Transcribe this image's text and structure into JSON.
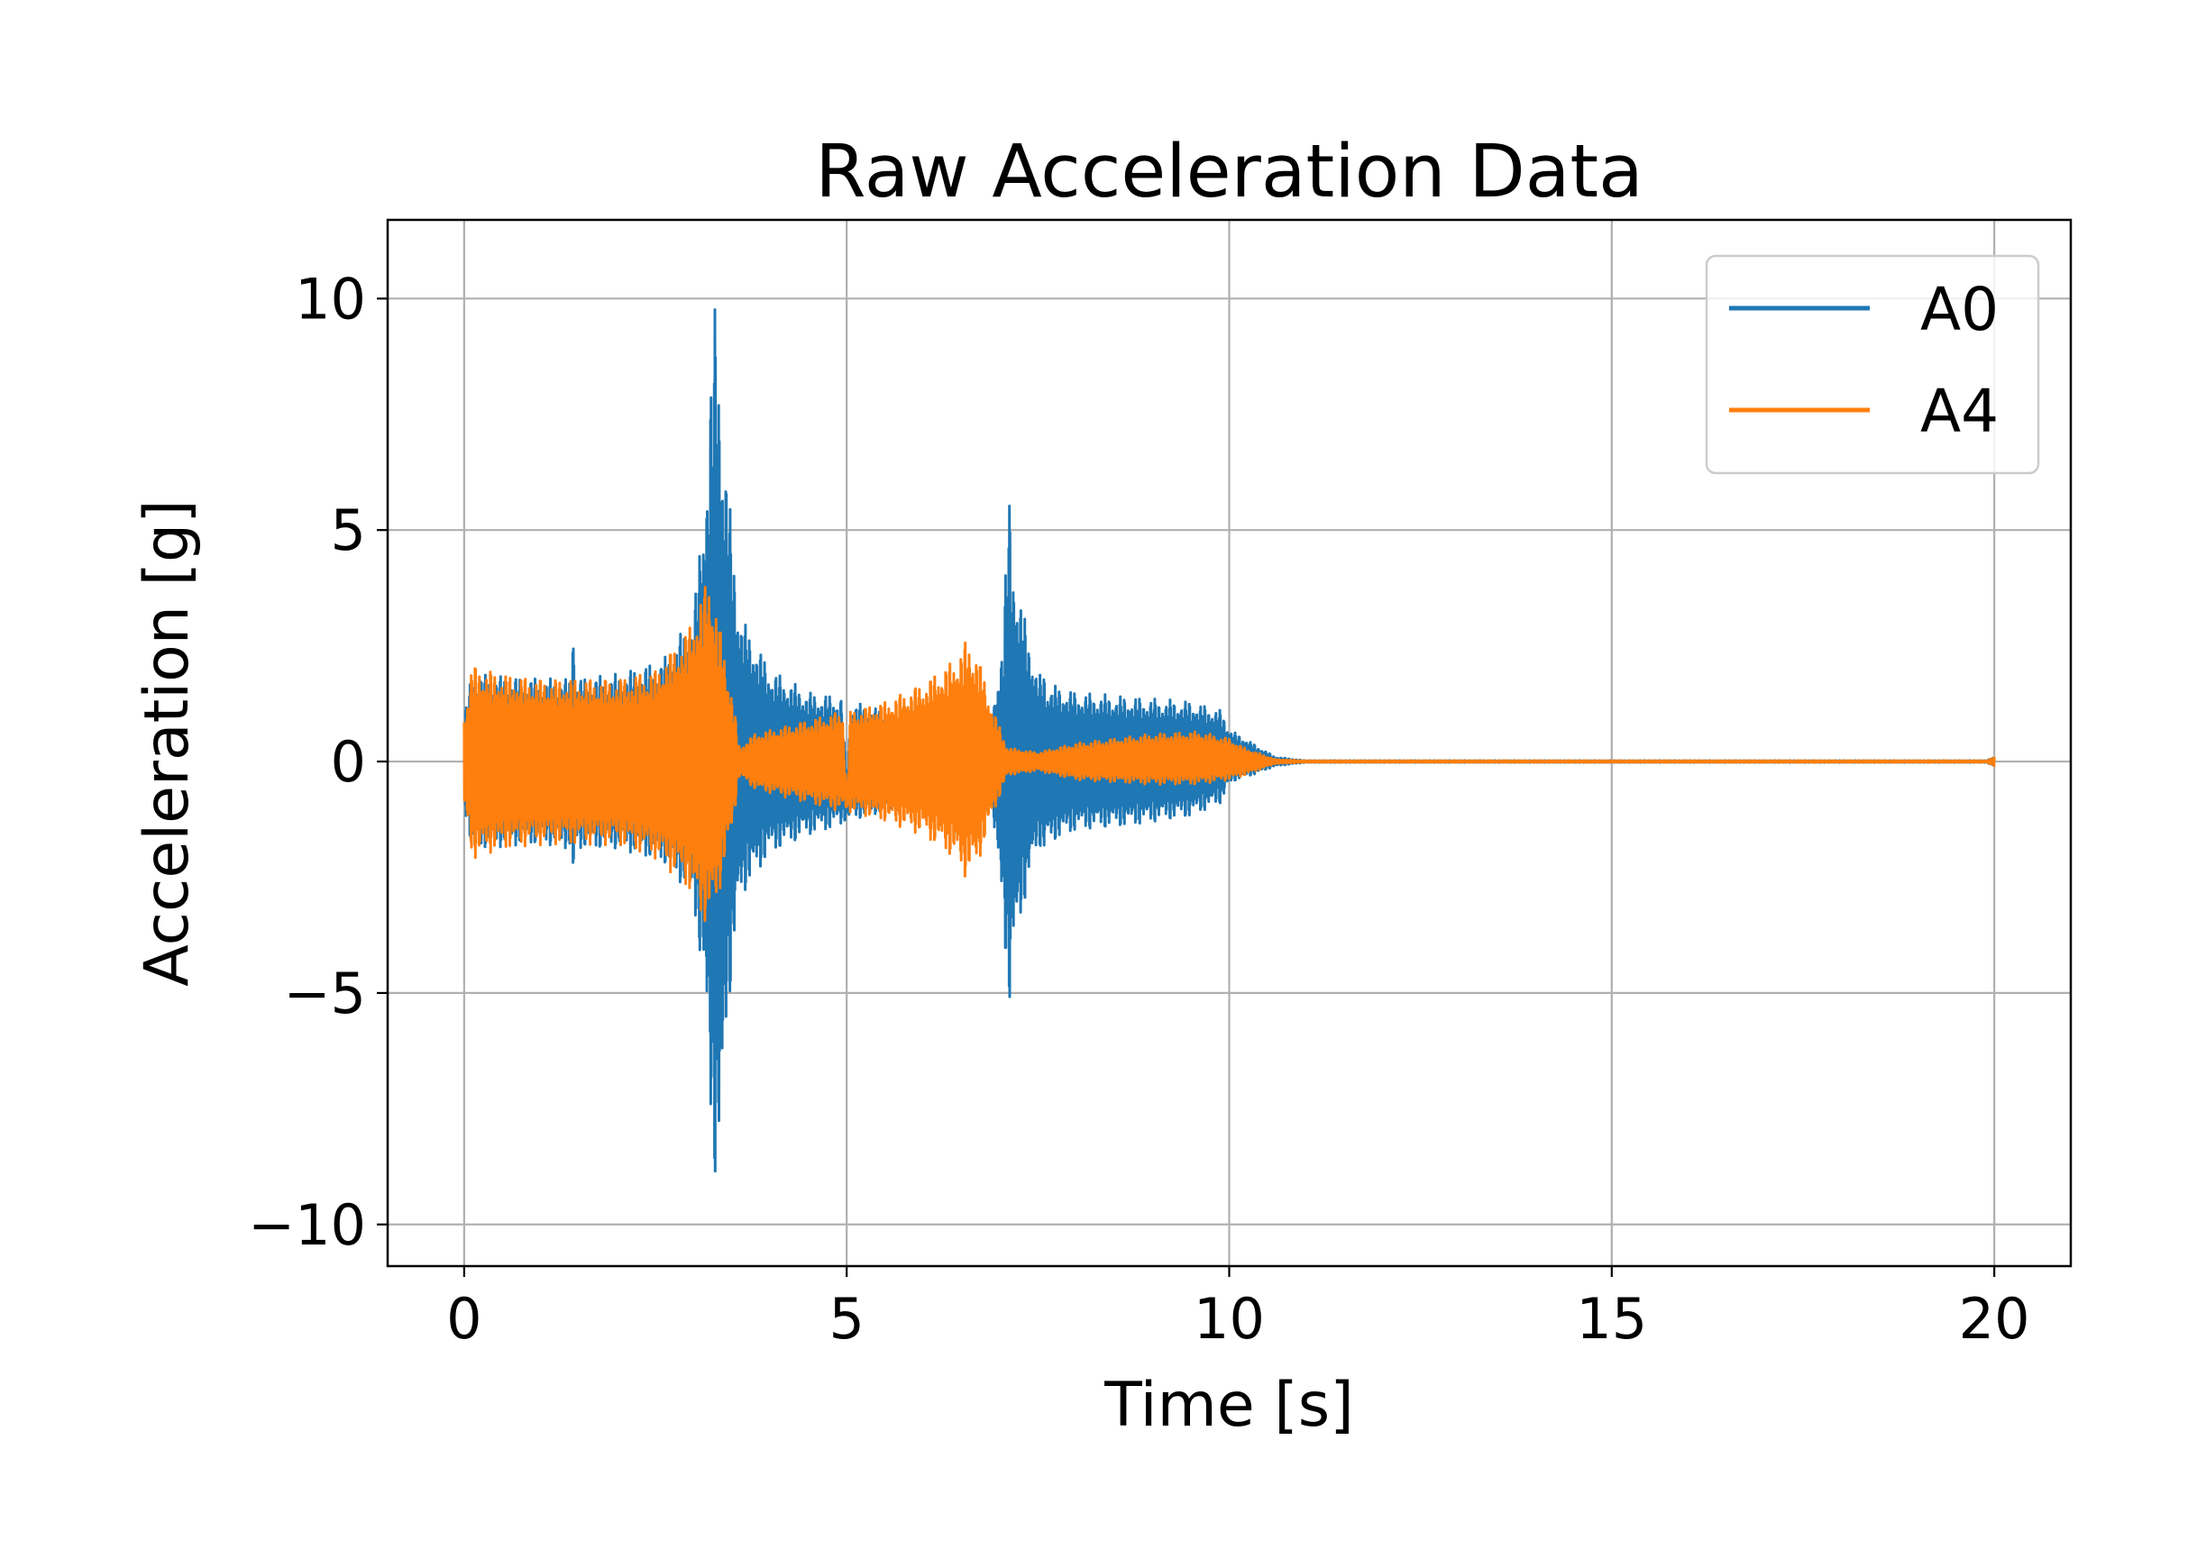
{
  "chart_data": {
    "type": "line",
    "title": "Raw Acceleration Data",
    "xlabel": "Time [s]",
    "ylabel": "Acceleration [g]",
    "xlim": [
      -1.0,
      21.0
    ],
    "ylim": [
      -10.9,
      11.7
    ],
    "x_ticks": [
      0,
      5,
      10,
      15,
      20
    ],
    "x_tick_labels": [
      "0",
      "5",
      "10",
      "15",
      "20"
    ],
    "y_ticks": [
      -10,
      -5,
      0,
      5,
      10
    ],
    "y_tick_labels": [
      "−10",
      "−5",
      "0",
      "5",
      "10"
    ],
    "grid": true,
    "legend_position": "top-right",
    "series": [
      {
        "name": "A0",
        "color": "#1f77b4",
        "envelope_upper": [
          [
            0,
            1.0
          ],
          [
            0.1,
            1.9
          ],
          [
            1.0,
            1.8
          ],
          [
            1.38,
            1.8
          ],
          [
            1.42,
            3.3
          ],
          [
            1.47,
            1.8
          ],
          [
            2.0,
            1.9
          ],
          [
            2.6,
            2.2
          ],
          [
            3.0,
            3.2
          ],
          [
            3.15,
            6.0
          ],
          [
            3.25,
            9.0
          ],
          [
            3.3,
            10.7
          ],
          [
            3.35,
            8.0
          ],
          [
            3.42,
            6.5
          ],
          [
            3.6,
            3.2
          ],
          [
            4.0,
            2.0
          ],
          [
            4.5,
            1.5
          ],
          [
            4.95,
            1.4
          ],
          [
            5.0,
            -0.8
          ],
          [
            5.05,
            1.3
          ],
          [
            5.5,
            1.1
          ],
          [
            6.0,
            0.5
          ],
          [
            6.6,
            0.6
          ],
          [
            6.9,
            0.9
          ],
          [
            7.05,
            3.0
          ],
          [
            7.12,
            5.9
          ],
          [
            7.2,
            4.0
          ],
          [
            7.4,
            2.6
          ],
          [
            7.5,
            1.8
          ],
          [
            7.58,
            2.0
          ],
          [
            7.62,
            1.7
          ],
          [
            8.0,
            1.5
          ],
          [
            8.7,
            1.4
          ],
          [
            9.5,
            1.3
          ],
          [
            9.9,
            1.1
          ],
          [
            10.0,
            0.7
          ],
          [
            10.1,
            0.6
          ],
          [
            10.3,
            0.4
          ],
          [
            10.6,
            0.1
          ],
          [
            11.0,
            0.02
          ],
          [
            15.0,
            0.02
          ],
          [
            19.9,
            0.02
          ],
          [
            20.0,
            0.1
          ]
        ],
        "envelope_lower": [
          [
            0,
            -1.0
          ],
          [
            0.1,
            -1.9
          ],
          [
            1.0,
            -1.8
          ],
          [
            1.38,
            -1.9
          ],
          [
            1.42,
            -3.0
          ],
          [
            1.47,
            -1.9
          ],
          [
            2.0,
            -1.9
          ],
          [
            2.6,
            -2.2
          ],
          [
            3.0,
            -3.0
          ],
          [
            3.15,
            -5.5
          ],
          [
            3.25,
            -8.5
          ],
          [
            3.3,
            -9.8
          ],
          [
            3.35,
            -8.9
          ],
          [
            3.42,
            -6.0
          ],
          [
            3.6,
            -3.0
          ],
          [
            4.0,
            -2.0
          ],
          [
            4.5,
            -1.6
          ],
          [
            4.95,
            -1.4
          ],
          [
            5.0,
            -1.2
          ],
          [
            5.05,
            -1.3
          ],
          [
            5.5,
            -1.1
          ],
          [
            6.0,
            -0.7
          ],
          [
            6.6,
            -0.8
          ],
          [
            6.9,
            -1.0
          ],
          [
            7.05,
            -3.5
          ],
          [
            7.12,
            -5.5
          ],
          [
            7.2,
            -4.0
          ],
          [
            7.4,
            -2.5
          ],
          [
            7.5,
            -1.8
          ],
          [
            7.58,
            -2.0
          ],
          [
            7.62,
            -1.8
          ],
          [
            8.0,
            -1.5
          ],
          [
            8.7,
            -1.4
          ],
          [
            9.5,
            -1.2
          ],
          [
            9.9,
            -0.9
          ],
          [
            10.0,
            -0.5
          ],
          [
            10.1,
            -0.4
          ],
          [
            10.3,
            -0.3
          ],
          [
            10.6,
            -0.1
          ],
          [
            11.0,
            -0.02
          ],
          [
            15.0,
            -0.02
          ],
          [
            19.9,
            -0.02
          ],
          [
            20.0,
            -0.1
          ]
        ]
      },
      {
        "name": "A4",
        "color": "#ff7f0e",
        "envelope_upper": [
          [
            0,
            1.0
          ],
          [
            0.1,
            2.1
          ],
          [
            0.5,
            1.9
          ],
          [
            1.0,
            1.8
          ],
          [
            1.5,
            1.8
          ],
          [
            2.0,
            1.8
          ],
          [
            2.5,
            2.0
          ],
          [
            2.9,
            2.8
          ],
          [
            3.1,
            3.6
          ],
          [
            3.2,
            4.1
          ],
          [
            3.3,
            3.3
          ],
          [
            3.5,
            1.5
          ],
          [
            3.6,
            0.3
          ],
          [
            3.8,
            0.6
          ],
          [
            4.5,
            0.9
          ],
          [
            4.95,
            1.1
          ],
          [
            5.0,
            -0.7
          ],
          [
            5.05,
            1.1
          ],
          [
            5.5,
            1.3
          ],
          [
            6.0,
            1.7
          ],
          [
            6.4,
            2.2
          ],
          [
            6.55,
            2.6
          ],
          [
            6.7,
            2.4
          ],
          [
            6.9,
            1.2
          ],
          [
            7.1,
            0.3
          ],
          [
            7.5,
            0.2
          ],
          [
            8.0,
            0.4
          ],
          [
            9.0,
            0.6
          ],
          [
            9.6,
            0.65
          ],
          [
            10.0,
            0.5
          ],
          [
            10.2,
            0.3
          ],
          [
            10.6,
            0.05
          ],
          [
            11.0,
            0.02
          ],
          [
            15.0,
            0.02
          ],
          [
            19.9,
            0.02
          ],
          [
            20.0,
            0.1
          ]
        ],
        "envelope_lower": [
          [
            0,
            -1.0
          ],
          [
            0.1,
            -2.1
          ],
          [
            0.5,
            -1.9
          ],
          [
            1.0,
            -1.8
          ],
          [
            1.5,
            -1.8
          ],
          [
            2.0,
            -1.8
          ],
          [
            2.5,
            -2.1
          ],
          [
            2.9,
            -2.7
          ],
          [
            3.1,
            -3.4
          ],
          [
            3.2,
            -3.6
          ],
          [
            3.3,
            -3.1
          ],
          [
            3.5,
            -1.5
          ],
          [
            3.6,
            -0.3
          ],
          [
            3.8,
            -0.6
          ],
          [
            4.5,
            -0.9
          ],
          [
            4.95,
            -1.1
          ],
          [
            5.0,
            -1.0
          ],
          [
            5.05,
            -1.1
          ],
          [
            5.5,
            -1.3
          ],
          [
            6.0,
            -1.6
          ],
          [
            6.4,
            -2.1
          ],
          [
            6.55,
            -2.5
          ],
          [
            6.7,
            -2.3
          ],
          [
            6.9,
            -1.2
          ],
          [
            7.1,
            -0.3
          ],
          [
            7.5,
            -0.2
          ],
          [
            8.0,
            -0.4
          ],
          [
            9.0,
            -0.5
          ],
          [
            9.6,
            -0.5
          ],
          [
            10.0,
            -0.4
          ],
          [
            10.2,
            -0.3
          ],
          [
            10.6,
            -0.05
          ],
          [
            11.0,
            -0.02
          ],
          [
            15.0,
            -0.02
          ],
          [
            19.9,
            -0.02
          ],
          [
            20.0,
            -0.1
          ]
        ]
      }
    ]
  }
}
